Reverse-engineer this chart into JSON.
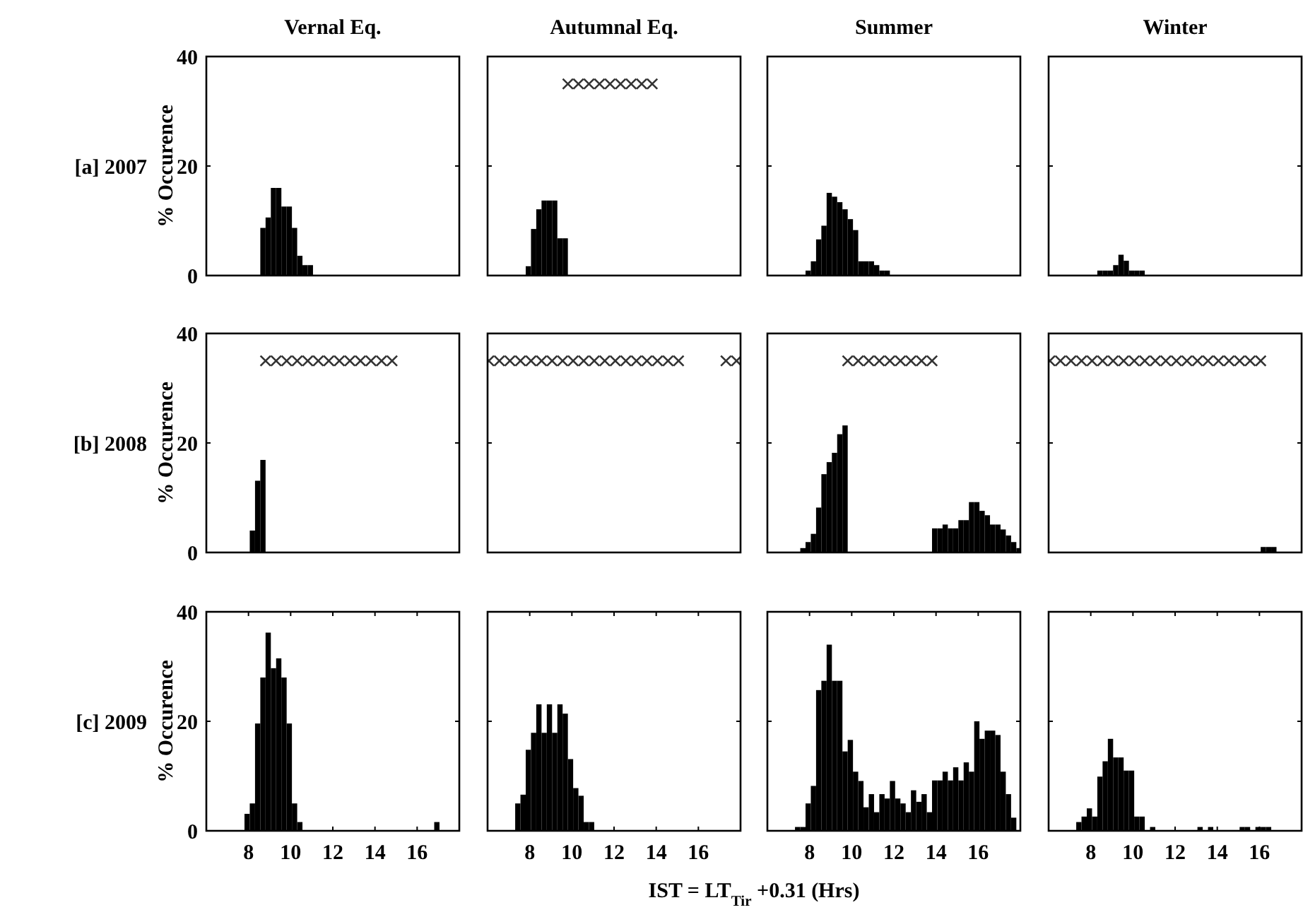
{
  "chart_data": [
    {
      "type": "histogram",
      "title": "Vernal Eq.",
      "ylabel": "% Occurence",
      "annotations": [
        "[a] 2007"
      ],
      "tick_labels": "y",
      "xlim": [
        6,
        18
      ],
      "ylim": [
        0,
        40
      ],
      "yticks": [
        0,
        20,
        40
      ],
      "color": "#000000",
      "bins": [
        8.56,
        8.81,
        9.06,
        9.31,
        9.56,
        9.81,
        10.06,
        10.31,
        10.56,
        10.81,
        11.06
      ],
      "values": [
        8.7,
        10.6,
        16,
        16,
        12.6,
        12.6,
        8.7,
        3.6,
        1.9,
        1.9
      ]
    },
    {
      "type": "histogram",
      "title": "Autumnal Eq.",
      "tick_labels": false,
      "xlim": [
        6,
        18
      ],
      "ylim": [
        0,
        40
      ],
      "yticks": [
        0,
        20,
        40
      ],
      "color": "#000000",
      "bins": [
        7.81,
        8.06,
        8.31,
        8.56,
        8.81,
        9.06,
        9.31,
        9.56,
        9.81
      ],
      "values": [
        1.7,
        8.5,
        12.1,
        13.7,
        13.7,
        13.7,
        6.8,
        6.8
      ],
      "series": [
        {
          "type": "scatter",
          "marker": "cross",
          "color": "#333333",
          "x": [
            9.81,
            10.31,
            10.81,
            11.31,
            11.81,
            12.31,
            12.81,
            13.31,
            13.81
          ],
          "values": [
            35,
            35,
            35,
            35,
            35,
            35,
            35,
            35,
            35
          ]
        }
      ]
    },
    {
      "type": "histogram",
      "title": "Summer",
      "tick_labels": false,
      "xlim": [
        6,
        18
      ],
      "ylim": [
        0,
        40
      ],
      "yticks": [
        0,
        20,
        40
      ],
      "color": "#000000",
      "bins": [
        7.81,
        8.06,
        8.31,
        8.56,
        8.81,
        9.06,
        9.31,
        9.56,
        9.81,
        10.06,
        10.31,
        10.56,
        10.81,
        11.06,
        11.31,
        11.56,
        11.81
      ],
      "values": [
        0.9,
        2.6,
        6.6,
        9.1,
        15.1,
        14.4,
        13.4,
        12.1,
        10.3,
        8.3,
        2.6,
        2.6,
        2.6,
        1.9,
        0.9,
        0.9
      ]
    },
    {
      "type": "histogram",
      "title": "Winter",
      "tick_labels": false,
      "xlim": [
        6,
        18
      ],
      "ylim": [
        0,
        40
      ],
      "yticks": [
        0,
        20,
        40
      ],
      "color": "#000000",
      "bins": [
        8.31,
        8.56,
        8.81,
        9.06,
        9.31,
        9.56,
        9.81,
        10.06,
        10.31,
        10.56
      ],
      "values": [
        0.9,
        0.9,
        0.9,
        1.9,
        3.8,
        2.7,
        0.9,
        0.9,
        0.9
      ]
    },
    {
      "type": "histogram",
      "ylabel": "% Occurence",
      "annotations": [
        "[b] 2008"
      ],
      "tick_labels": "y",
      "xlim": [
        6,
        18
      ],
      "ylim": [
        0,
        40
      ],
      "yticks": [
        0,
        20,
        40
      ],
      "color": "#000000",
      "bins": [
        8.06,
        8.31,
        8.56,
        8.81
      ],
      "values": [
        4.0,
        13.1,
        16.9
      ],
      "series": [
        {
          "type": "scatter",
          "marker": "cross",
          "color": "#333333",
          "x": [
            8.81,
            9.31,
            9.81,
            10.31,
            10.81,
            11.31,
            11.81,
            12.31,
            12.81,
            13.31,
            13.81,
            14.31,
            14.81
          ],
          "values": [
            35,
            35,
            35,
            35,
            35,
            35,
            35,
            35,
            35,
            35,
            35,
            35,
            35
          ]
        }
      ]
    },
    {
      "type": "scatter",
      "tick_labels": false,
      "xlim": [
        6,
        18
      ],
      "ylim": [
        0,
        40
      ],
      "yticks": [
        0,
        20,
        40
      ],
      "marker": "cross",
      "color": "#333333",
      "x": [
        6.06,
        6.56,
        7.06,
        7.56,
        8.06,
        8.56,
        9.06,
        9.56,
        10.06,
        10.56,
        11.06,
        11.56,
        12.06,
        12.56,
        13.06,
        13.56,
        14.06,
        14.56,
        15.06,
        17.31,
        17.81
      ],
      "values": [
        35,
        35,
        35,
        35,
        35,
        35,
        35,
        35,
        35,
        35,
        35,
        35,
        35,
        35,
        35,
        35,
        35,
        35,
        35,
        35,
        35
      ]
    },
    {
      "type": "histogram",
      "tick_labels": false,
      "xlim": [
        6,
        18
      ],
      "ylim": [
        0,
        40
      ],
      "yticks": [
        0,
        20,
        40
      ],
      "color": "#000000",
      "bins": [
        7.56,
        7.81,
        8.06,
        8.31,
        8.56,
        8.81,
        9.06,
        9.31,
        9.56,
        9.81,
        13.81,
        14.06,
        14.31,
        14.56,
        14.81,
        15.06,
        15.31,
        15.56,
        15.81,
        16.06,
        16.31,
        16.56,
        16.81,
        17.06,
        17.31,
        17.56,
        17.81,
        18
      ],
      "values": [
        0.8,
        1.9,
        3.4,
        8.2,
        14.3,
        16.5,
        18.2,
        21.6,
        23.2,
        0,
        4.4,
        4.4,
        5.1,
        4.4,
        4.4,
        5.9,
        5.9,
        9.2,
        9.2,
        7.6,
        6.8,
        5.1,
        5.1,
        4.2,
        3.1,
        1.9,
        0.8
      ],
      "series": [
        {
          "type": "scatter",
          "marker": "cross",
          "color": "#333333",
          "x": [
            9.81,
            10.31,
            10.81,
            11.31,
            11.81,
            12.31,
            12.81,
            13.31,
            13.81
          ],
          "values": [
            35,
            35,
            35,
            35,
            35,
            35,
            35,
            35,
            35
          ]
        }
      ]
    },
    {
      "type": "histogram",
      "tick_labels": false,
      "xlim": [
        6,
        18
      ],
      "ylim": [
        0,
        40
      ],
      "yticks": [
        0,
        20,
        40
      ],
      "color": "#000000",
      "bins": [
        16.06,
        16.31,
        16.56,
        16.81
      ],
      "values": [
        1.0,
        1.0,
        1.0
      ],
      "series": [
        {
          "type": "scatter",
          "marker": "cross",
          "color": "#333333",
          "x": [
            6.06,
            6.56,
            7.06,
            7.56,
            8.06,
            8.56,
            9.06,
            9.56,
            10.06,
            10.56,
            11.06,
            11.56,
            12.06,
            12.56,
            13.06,
            13.56,
            14.06,
            14.56,
            15.06,
            15.56,
            16.06
          ],
          "values": [
            35,
            35,
            35,
            35,
            35,
            35,
            35,
            35,
            35,
            35,
            35,
            35,
            35,
            35,
            35,
            35,
            35,
            35,
            35,
            35,
            35
          ]
        }
      ]
    },
    {
      "type": "histogram",
      "ylabel": "% Occurence",
      "annotations": [
        "[c] 2009"
      ],
      "xlim": [
        6,
        18
      ],
      "xticks": [
        8,
        10,
        12,
        14,
        16
      ],
      "ylim": [
        0,
        40
      ],
      "yticks": [
        0,
        20,
        40
      ],
      "color": "#000000",
      "bins": [
        7.81,
        8.06,
        8.31,
        8.56,
        8.81,
        9.06,
        9.31,
        9.56,
        9.81,
        10.06,
        10.31,
        10.56,
        16.81,
        17.06
      ],
      "values": [
        3.1,
        5.0,
        19.6,
        28.0,
        36.2,
        29.7,
        31.5,
        28.0,
        19.6,
        5.0,
        1.6,
        0,
        1.6
      ]
    },
    {
      "type": "histogram",
      "xlabel": "IST = LT$_{Tir}$ +0.31 (Hrs)",
      "tick_labels": "x",
      "xlim": [
        6,
        18
      ],
      "xticks": [
        8,
        10,
        12,
        14,
        16
      ],
      "ylim": [
        0,
        40
      ],
      "yticks": [
        0,
        20,
        40
      ],
      "color": "#000000",
      "bins": [
        7.31,
        7.56,
        7.81,
        8.06,
        8.31,
        8.56,
        8.81,
        9.06,
        9.31,
        9.56,
        9.81,
        10.06,
        10.31,
        10.56,
        10.81,
        11.06
      ],
      "values": [
        5.0,
        6.6,
        14.8,
        17.9,
        23.1,
        17.9,
        23.1,
        17.9,
        23.1,
        21.4,
        13.1,
        7.8,
        6.4,
        1.6,
        1.6
      ]
    },
    {
      "type": "histogram",
      "tick_labels": "x",
      "xlim": [
        6,
        18
      ],
      "xticks": [
        8,
        10,
        12,
        14,
        16
      ],
      "ylim": [
        0,
        40
      ],
      "yticks": [
        0,
        20,
        40
      ],
      "color": "#000000",
      "bins": [
        7.31,
        7.56,
        7.81,
        8.06,
        8.31,
        8.56,
        8.81,
        9.06,
        9.31,
        9.56,
        9.81,
        10.06,
        10.31,
        10.56,
        10.81,
        11.06,
        11.31,
        11.56,
        11.81,
        12.06,
        12.31,
        12.56,
        12.81,
        13.06,
        13.31,
        13.56,
        13.81,
        14.06,
        14.31,
        14.56,
        14.81,
        15.06,
        15.31,
        15.56,
        15.81,
        16.06,
        16.31,
        16.56,
        16.81,
        17.06,
        17.31,
        17.56,
        17.81
      ],
      "values": [
        0.7,
        0.7,
        5.0,
        8.2,
        25.7,
        27.4,
        34.0,
        27.4,
        27.4,
        14.5,
        16.6,
        10.8,
        9.1,
        4.3,
        6.7,
        3.4,
        6.7,
        5.9,
        9.1,
        5.9,
        5.0,
        3.4,
        7.4,
        5.3,
        6.7,
        3.4,
        9.2,
        9.2,
        10.8,
        9.2,
        11.6,
        9.2,
        12.5,
        10.8,
        20.0,
        16.8,
        18.3,
        18.3,
        17.5,
        10.8,
        6.7,
        2.4
      ]
    },
    {
      "type": "histogram",
      "tick_labels": "x",
      "xlim": [
        6,
        18
      ],
      "xticks": [
        8,
        10,
        12,
        14,
        16
      ],
      "ylim": [
        0,
        40
      ],
      "yticks": [
        0,
        20,
        40
      ],
      "color": "#000000",
      "bins": [
        7.31,
        7.56,
        7.81,
        8.06,
        8.31,
        8.56,
        8.81,
        9.06,
        9.31,
        9.56,
        9.81,
        10.06,
        10.31,
        10.56,
        10.81,
        11.06,
        13.06,
        13.31,
        13.56,
        13.81,
        15.06,
        15.31,
        15.56,
        15.81,
        16.06,
        16.31,
        16.56
      ],
      "values": [
        1.6,
        2.6,
        4.1,
        2.6,
        9.9,
        12.7,
        16.8,
        13.4,
        13.4,
        11.0,
        11.0,
        2.6,
        2.6,
        0,
        0.7,
        0,
        0.7,
        0,
        0.7,
        0,
        0.7,
        0.7,
        null,
        0.7,
        0.7,
        0.7
      ]
    }
  ]
}
